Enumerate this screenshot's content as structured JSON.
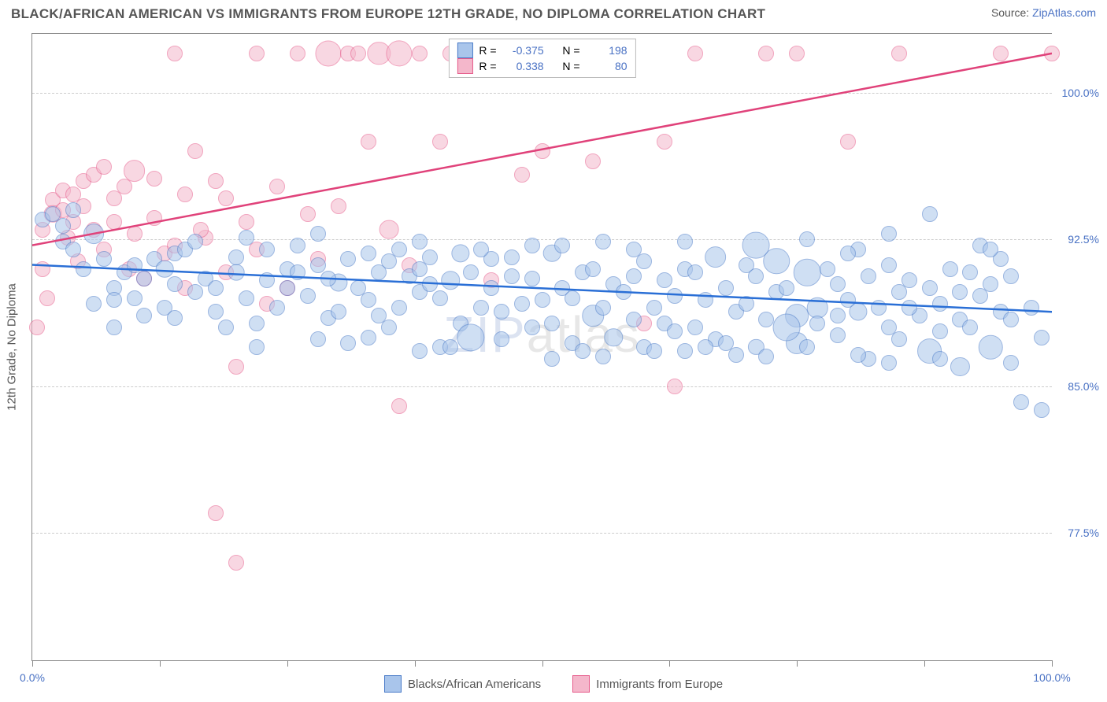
{
  "title": "BLACK/AFRICAN AMERICAN VS IMMIGRANTS FROM EUROPE 12TH GRADE, NO DIPLOMA CORRELATION CHART",
  "source_prefix": "Source: ",
  "source_link": "ZipAtlas.com",
  "ylabel": "12th Grade, No Diploma",
  "watermark": "ZIPatlas",
  "chart": {
    "type": "scatter",
    "xlim": [
      0,
      100
    ],
    "ylim": [
      71,
      103
    ],
    "yticks": [
      {
        "v": 77.5,
        "label": "77.5%"
      },
      {
        "v": 85.0,
        "label": "85.0%"
      },
      {
        "v": 92.5,
        "label": "92.5%"
      },
      {
        "v": 100.0,
        "label": "100.0%"
      }
    ],
    "xtick_positions": [
      0,
      12.5,
      25,
      37.5,
      50,
      62.5,
      75,
      87.5,
      100
    ],
    "xtick_labels": [
      {
        "v": 0,
        "label": "0.0%"
      },
      {
        "v": 100,
        "label": "100.0%"
      }
    ],
    "series": [
      {
        "name": "Blacks/African Americans",
        "color_fill": "#a9c5eb",
        "color_stroke": "#4a7bc8",
        "line_color": "#2a6fd6",
        "marker_r": 10,
        "R": "-0.375",
        "N": "198",
        "trend": {
          "x1": 0,
          "y1": 91.2,
          "x2": 100,
          "y2": 88.8
        },
        "points": [
          [
            1,
            93.5
          ],
          [
            2,
            93.8
          ],
          [
            3,
            92.4
          ],
          [
            3,
            93.2
          ],
          [
            4,
            92.0
          ],
          [
            4,
            94.0
          ],
          [
            5,
            91.0
          ],
          [
            6,
            89.2
          ],
          [
            7,
            91.5
          ],
          [
            8,
            90.0
          ],
          [
            9,
            90.8
          ],
          [
            10,
            89.5
          ],
          [
            10,
            91.2
          ],
          [
            11,
            90.5
          ],
          [
            12,
            91.5
          ],
          [
            13,
            89.0
          ],
          [
            14,
            90.2
          ],
          [
            14,
            91.8
          ],
          [
            15,
            92.0
          ],
          [
            16,
            89.8
          ],
          [
            17,
            90.5
          ],
          [
            18,
            90.0
          ],
          [
            19,
            88.0
          ],
          [
            20,
            90.8
          ],
          [
            20,
            91.6
          ],
          [
            21,
            89.5
          ],
          [
            22,
            88.2
          ],
          [
            23,
            90.4
          ],
          [
            24,
            89.0
          ],
          [
            25,
            91.0
          ],
          [
            25,
            90.0
          ],
          [
            26,
            90.8
          ],
          [
            27,
            89.6
          ],
          [
            28,
            91.2
          ],
          [
            29,
            88.5
          ],
          [
            30,
            88.8
          ],
          [
            30,
            90.3
          ],
          [
            31,
            91.5
          ],
          [
            32,
            90.0
          ],
          [
            33,
            89.4
          ],
          [
            34,
            90.8
          ],
          [
            35,
            88.0
          ],
          [
            35,
            91.4
          ],
          [
            36,
            89.0
          ],
          [
            37,
            90.6
          ],
          [
            38,
            89.8
          ],
          [
            38,
            91.0
          ],
          [
            39,
            90.2
          ],
          [
            40,
            87.0
          ],
          [
            40,
            89.5
          ],
          [
            41,
            90.4
          ],
          [
            42,
            88.2
          ],
          [
            43,
            87.5
          ],
          [
            43,
            90.8
          ],
          [
            44,
            89.0
          ],
          [
            45,
            90.0
          ],
          [
            45,
            91.5
          ],
          [
            46,
            88.8
          ],
          [
            47,
            90.6
          ],
          [
            48,
            89.2
          ],
          [
            49,
            88.0
          ],
          [
            49,
            90.5
          ],
          [
            50,
            89.4
          ],
          [
            51,
            91.8
          ],
          [
            51,
            88.2
          ],
          [
            52,
            90.0
          ],
          [
            53,
            89.5
          ],
          [
            53,
            87.2
          ],
          [
            54,
            90.8
          ],
          [
            55,
            88.6
          ],
          [
            55,
            91.0
          ],
          [
            56,
            89.0
          ],
          [
            57,
            87.5
          ],
          [
            57,
            90.2
          ],
          [
            58,
            89.8
          ],
          [
            59,
            90.6
          ],
          [
            59,
            88.4
          ],
          [
            60,
            91.4
          ],
          [
            61,
            89.0
          ],
          [
            62,
            88.2
          ],
          [
            62,
            90.4
          ],
          [
            63,
            87.8
          ],
          [
            63,
            89.6
          ],
          [
            64,
            91.0
          ],
          [
            65,
            88.0
          ],
          [
            65,
            90.8
          ],
          [
            66,
            89.4
          ],
          [
            67,
            91.6
          ],
          [
            67,
            87.4
          ],
          [
            68,
            90.0
          ],
          [
            69,
            88.8
          ],
          [
            70,
            89.2
          ],
          [
            70,
            91.2
          ],
          [
            71,
            87.0
          ],
          [
            71,
            90.6
          ],
          [
            72,
            88.4
          ],
          [
            73,
            89.8
          ],
          [
            73,
            91.4
          ],
          [
            74,
            90.0
          ],
          [
            75,
            88.6
          ],
          [
            75,
            87.2
          ],
          [
            76,
            90.8
          ],
          [
            77,
            89.0
          ],
          [
            77,
            88.2
          ],
          [
            78,
            91.0
          ],
          [
            79,
            87.6
          ],
          [
            79,
            90.2
          ],
          [
            80,
            89.4
          ],
          [
            81,
            88.8
          ],
          [
            81,
            92.0
          ],
          [
            82,
            86.4
          ],
          [
            82,
            90.6
          ],
          [
            83,
            89.0
          ],
          [
            84,
            88.0
          ],
          [
            84,
            91.2
          ],
          [
            85,
            89.8
          ],
          [
            85,
            87.4
          ],
          [
            86,
            90.4
          ],
          [
            87,
            88.6
          ],
          [
            88,
            93.8
          ],
          [
            88,
            90.0
          ],
          [
            89,
            89.2
          ],
          [
            89,
            87.8
          ],
          [
            90,
            91.0
          ],
          [
            91,
            88.4
          ],
          [
            91,
            86.0
          ],
          [
            92,
            90.8
          ],
          [
            93,
            89.6
          ],
          [
            93,
            92.2
          ],
          [
            94,
            87.0
          ],
          [
            94,
            90.2
          ],
          [
            95,
            88.8
          ],
          [
            96,
            86.2
          ],
          [
            96,
            90.6
          ],
          [
            97,
            84.2
          ],
          [
            98,
            89.0
          ],
          [
            99,
            83.8
          ],
          [
            99,
            87.5
          ],
          [
            8,
            88.0
          ],
          [
            14,
            88.5
          ],
          [
            22,
            87.0
          ],
          [
            28,
            92.8
          ],
          [
            33,
            87.5
          ],
          [
            38,
            92.4
          ],
          [
            42,
            91.8
          ],
          [
            47,
            91.6
          ],
          [
            52,
            92.2
          ],
          [
            56,
            86.5
          ],
          [
            60,
            87.0
          ],
          [
            64,
            86.8
          ],
          [
            68,
            87.2
          ],
          [
            72,
            86.5
          ],
          [
            76,
            92.5
          ],
          [
            80,
            91.8
          ],
          [
            84,
            86.2
          ],
          [
            88,
            86.8
          ],
          [
            92,
            88.0
          ],
          [
            95,
            91.5
          ],
          [
            6,
            92.8
          ],
          [
            11,
            88.6
          ],
          [
            16,
            92.4
          ],
          [
            21,
            92.6
          ],
          [
            26,
            92.2
          ],
          [
            31,
            87.2
          ],
          [
            36,
            92.0
          ],
          [
            41,
            87.0
          ],
          [
            46,
            87.4
          ],
          [
            51,
            86.4
          ],
          [
            56,
            92.4
          ],
          [
            61,
            86.8
          ],
          [
            66,
            87.0
          ],
          [
            71,
            92.2
          ],
          [
            76,
            87.0
          ],
          [
            81,
            86.6
          ],
          [
            86,
            89.0
          ],
          [
            91,
            89.8
          ],
          [
            96,
            88.4
          ],
          [
            29,
            90.5
          ],
          [
            34,
            88.6
          ],
          [
            39,
            91.6
          ],
          [
            44,
            92.0
          ],
          [
            49,
            92.2
          ],
          [
            54,
            86.8
          ],
          [
            59,
            92.0
          ],
          [
            64,
            92.4
          ],
          [
            69,
            86.6
          ],
          [
            74,
            88.0
          ],
          [
            79,
            88.6
          ],
          [
            84,
            92.8
          ],
          [
            89,
            86.4
          ],
          [
            94,
            92.0
          ],
          [
            8,
            89.4
          ],
          [
            13,
            91.0
          ],
          [
            18,
            88.8
          ],
          [
            23,
            92.0
          ],
          [
            28,
            87.4
          ],
          [
            33,
            91.8
          ],
          [
            38,
            86.8
          ]
        ]
      },
      {
        "name": "Immigrants from Europe",
        "color_fill": "#f4b7cb",
        "color_stroke": "#e65a8a",
        "line_color": "#e0427a",
        "marker_r": 10,
        "R": "0.338",
        "N": "80",
        "trend": {
          "x1": 0,
          "y1": 92.2,
          "x2": 100,
          "y2": 102.0
        },
        "points": [
          [
            1,
            93.0
          ],
          [
            2,
            94.5
          ],
          [
            2,
            93.8
          ],
          [
            3,
            95.0
          ],
          [
            3,
            94.0
          ],
          [
            4,
            94.8
          ],
          [
            4,
            93.4
          ],
          [
            5,
            95.5
          ],
          [
            5,
            94.2
          ],
          [
            6,
            95.8
          ],
          [
            6,
            93.0
          ],
          [
            7,
            96.2
          ],
          [
            8,
            94.6
          ],
          [
            8,
            93.4
          ],
          [
            9,
            95.2
          ],
          [
            10,
            96.0
          ],
          [
            10,
            92.8
          ],
          [
            11,
            90.5
          ],
          [
            12,
            93.6
          ],
          [
            13,
            91.8
          ],
          [
            14,
            92.2
          ],
          [
            15,
            94.8
          ],
          [
            15,
            90.0
          ],
          [
            16,
            97.0
          ],
          [
            17,
            92.6
          ],
          [
            18,
            95.5
          ],
          [
            19,
            90.8
          ],
          [
            20,
            86.0
          ],
          [
            21,
            93.4
          ],
          [
            22,
            102.0
          ],
          [
            18,
            78.5
          ],
          [
            22,
            92.0
          ],
          [
            24,
            95.2
          ],
          [
            25,
            90.0
          ],
          [
            26,
            102.0
          ],
          [
            27,
            93.8
          ],
          [
            28,
            91.5
          ],
          [
            29,
            102.0
          ],
          [
            30,
            94.2
          ],
          [
            31,
            102.0
          ],
          [
            32,
            102.0
          ],
          [
            33,
            97.5
          ],
          [
            34,
            102.0
          ],
          [
            35,
            93.0
          ],
          [
            36,
            102.0
          ],
          [
            36,
            84.0
          ],
          [
            37,
            91.2
          ],
          [
            38,
            102.0
          ],
          [
            40,
            97.5
          ],
          [
            41,
            102.0
          ],
          [
            42,
            102.0
          ],
          [
            20,
            76.0
          ],
          [
            45,
            90.4
          ],
          [
            48,
            95.8
          ],
          [
            50,
            97.0
          ],
          [
            52,
            102.0
          ],
          [
            55,
            96.5
          ],
          [
            58,
            102.0
          ],
          [
            60,
            88.2
          ],
          [
            62,
            97.5
          ],
          [
            63,
            85.0
          ],
          [
            65,
            102.0
          ],
          [
            72,
            102.0
          ],
          [
            75,
            102.0
          ],
          [
            80,
            97.5
          ],
          [
            85,
            102.0
          ],
          [
            95,
            102.0
          ],
          [
            100,
            102.0
          ],
          [
            0.5,
            88.0
          ],
          [
            1.5,
            89.5
          ],
          [
            3.5,
            92.6
          ],
          [
            4.5,
            91.4
          ],
          [
            7,
            92.0
          ],
          [
            9.5,
            91.0
          ],
          [
            12,
            95.6
          ],
          [
            16.5,
            93.0
          ],
          [
            19,
            94.6
          ],
          [
            23,
            89.2
          ],
          [
            14,
            102.0
          ],
          [
            1,
            91.0
          ]
        ]
      }
    ]
  },
  "legend_labels": {
    "R": "R =",
    "N": "N ="
  },
  "bottom_legend": [
    {
      "label": "Blacks/African Americans",
      "fill": "#a9c5eb",
      "stroke": "#4a7bc8"
    },
    {
      "label": "Immigrants from Europe",
      "fill": "#f4b7cb",
      "stroke": "#e65a8a"
    }
  ]
}
